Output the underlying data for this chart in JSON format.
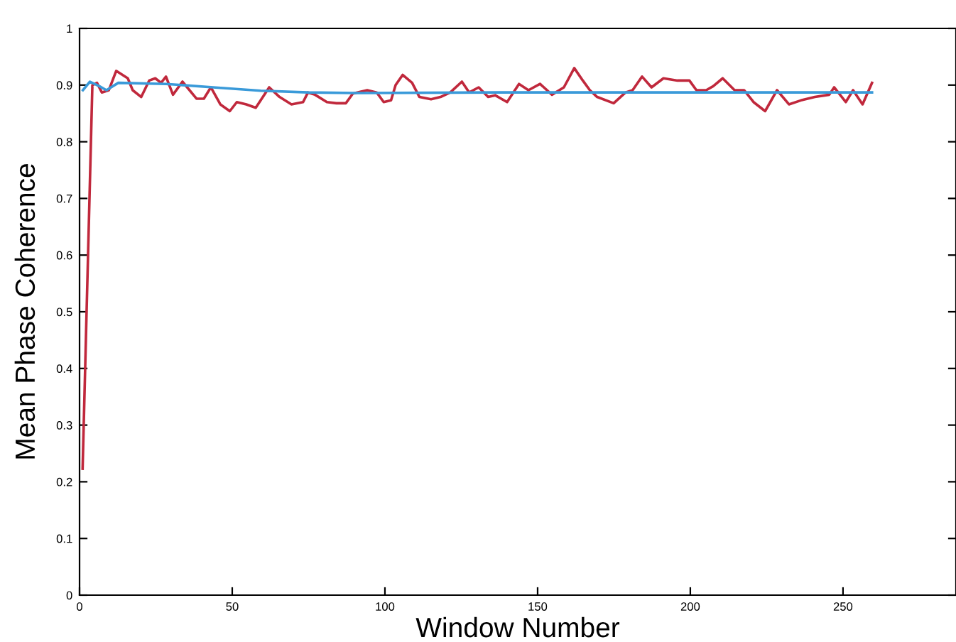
{
  "chart_data": {
    "type": "line",
    "xlabel": "Window Number",
    "ylabel": "Mean Phase Coherence",
    "xlim": [
      0,
      287
    ],
    "ylim": [
      0,
      1
    ],
    "xticks": [
      0,
      50,
      100,
      150,
      200,
      250
    ],
    "yticks": [
      0,
      0.1,
      0.2,
      0.3,
      0.4,
      0.5,
      0.6,
      0.7,
      0.8,
      0.9,
      1
    ],
    "grid": false,
    "series": [
      {
        "color": "#c0283c",
        "x": [
          1,
          4.2,
          5.7,
          7.3,
          9.6,
          12.0,
          15.8,
          17.4,
          20.2,
          22.8,
          24.8,
          26.7,
          28.3,
          30.6,
          33.7,
          38.3,
          40.7,
          43.0,
          46.1,
          49.2,
          51.5,
          54.6,
          57.7,
          62.1,
          65.5,
          69.4,
          73.2,
          74.8,
          77.1,
          81.0,
          84.1,
          87.2,
          89.5,
          94.2,
          97.3,
          99.6,
          102.0,
          103.5,
          105.8,
          108.9,
          111.3,
          115.1,
          118.2,
          121.4,
          125.2,
          127.6,
          130.7,
          133.8,
          136.1,
          140.0,
          143.9,
          147.0,
          150.8,
          154.7,
          158.6,
          162.0,
          164.8,
          167.1,
          169.5,
          174.9,
          178.8,
          181.1,
          184.2,
          187.3,
          191.2,
          195.8,
          199.7,
          202.0,
          205.2,
          207.5,
          210.6,
          214.5,
          217.6,
          220.7,
          224.5,
          228.4,
          232.3,
          236.2,
          240.8,
          245.5,
          247.1,
          250.9,
          253.3,
          256.4,
          259.5
        ],
        "values": [
          0.223,
          0.9,
          0.904,
          0.887,
          0.891,
          0.925,
          0.912,
          0.891,
          0.879,
          0.908,
          0.912,
          0.904,
          0.915,
          0.883,
          0.906,
          0.876,
          0.876,
          0.896,
          0.866,
          0.854,
          0.87,
          0.866,
          0.86,
          0.896,
          0.879,
          0.866,
          0.87,
          0.887,
          0.883,
          0.87,
          0.868,
          0.868,
          0.885,
          0.891,
          0.887,
          0.87,
          0.873,
          0.9,
          0.918,
          0.904,
          0.879,
          0.875,
          0.879,
          0.887,
          0.906,
          0.887,
          0.896,
          0.879,
          0.882,
          0.87,
          0.902,
          0.891,
          0.902,
          0.883,
          0.896,
          0.93,
          0.908,
          0.891,
          0.879,
          0.868,
          0.887,
          0.891,
          0.915,
          0.896,
          0.912,
          0.908,
          0.908,
          0.891,
          0.891,
          0.898,
          0.912,
          0.891,
          0.891,
          0.87,
          0.854,
          0.891,
          0.866,
          0.873,
          0.879,
          0.883,
          0.896,
          0.87,
          0.891,
          0.866,
          0.904
        ]
      },
      {
        "color": "#3a9ad9",
        "x": [
          1.1,
          3.4,
          6.5,
          8.8,
          12.7,
          28.3,
          43.8,
          59.3,
          74.8,
          90.3,
          136.9,
          200,
          259.5
        ],
        "values": [
          0.891,
          0.906,
          0.898,
          0.891,
          0.904,
          0.902,
          0.896,
          0.89,
          0.887,
          0.886,
          0.887,
          0.887,
          0.887
        ]
      }
    ]
  }
}
